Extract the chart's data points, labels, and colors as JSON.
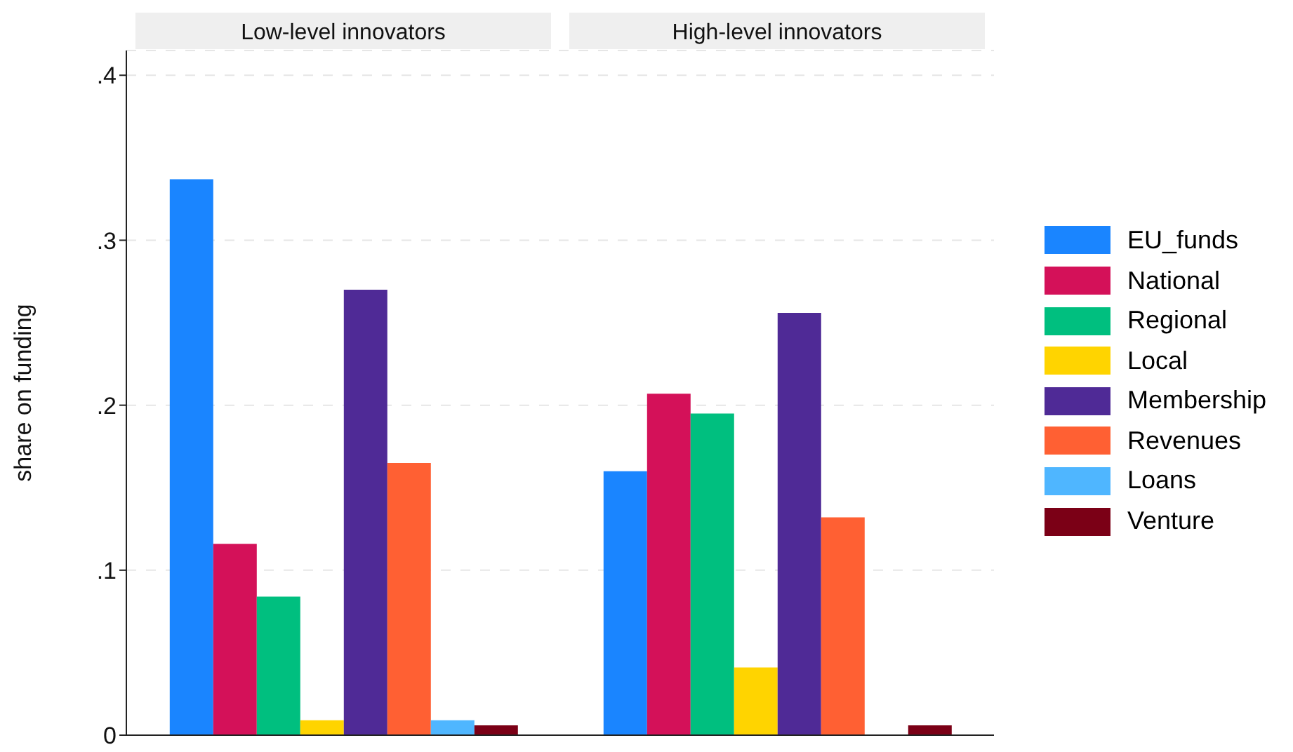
{
  "chart_data": {
    "type": "bar",
    "ylabel": "share on funding",
    "categories": [
      "Low-level innovators",
      "High-level innovators"
    ],
    "ylim": [
      0,
      0.415
    ],
    "yticks": [
      0,
      {
        "value": 0.1,
        "label": ".1"
      },
      {
        "value": 0.2,
        "label": ".2"
      },
      {
        "value": 0.3,
        "label": ".3"
      },
      {
        "value": 0.4,
        "label": ".4"
      }
    ],
    "grid": "y",
    "legend": "right",
    "series": [
      {
        "name": "EU_funds",
        "color": "#1a85ff",
        "values": [
          0.337,
          0.16
        ]
      },
      {
        "name": "National",
        "color": "#d41159",
        "values": [
          0.116,
          0.207
        ]
      },
      {
        "name": "Regional",
        "color": "#00bf7f",
        "values": [
          0.084,
          0.195
        ]
      },
      {
        "name": "Local",
        "color": "#ffd400",
        "values": [
          0.009,
          0.041
        ]
      },
      {
        "name": "Membership",
        "color": "#4f2a96",
        "values": [
          0.27,
          0.256
        ]
      },
      {
        "name": "Revenues",
        "color": "#ff6033",
        "values": [
          0.165,
          0.132
        ]
      },
      {
        "name": "Loans",
        "color": "#4fb6ff",
        "values": [
          0.009,
          0
        ]
      },
      {
        "name": "Venture",
        "color": "#7b0016",
        "values": [
          0.006,
          0.006
        ]
      }
    ]
  }
}
